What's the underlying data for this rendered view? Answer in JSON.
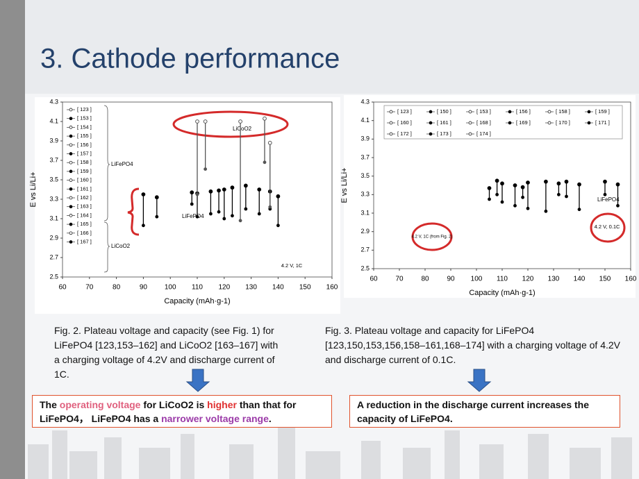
{
  "title": "3. Cathode performance",
  "chart_data": [
    {
      "type": "range",
      "ylabel": "E vs Li/Li+",
      "xlabel": "Capacity (mAh·g-1)",
      "xlim": [
        60,
        160
      ],
      "ylim": [
        2.5,
        4.3
      ],
      "xticks": [
        60,
        70,
        80,
        90,
        100,
        110,
        120,
        130,
        140,
        150,
        160
      ],
      "yticks": [
        2.5,
        2.7,
        2.9,
        3.1,
        3.3,
        3.5,
        3.7,
        3.9,
        4.1,
        4.3
      ],
      "legend": [
        "[ 123 ]",
        "[ 153 ]",
        "[ 154 ]",
        "[ 155 ]",
        "[ 156 ]",
        "[ 157 ]",
        "[ 158 ]",
        "[ 159 ]",
        "[ 160 ]",
        "[ 161 ]",
        "[ 162 ]",
        "[ 163 ]",
        "[ 164 ]",
        "[ 165 ]",
        "[ 166 ]",
        "[ 167 ]"
      ],
      "series": [
        {
          "name": "LiFePO4",
          "color": "#000000",
          "x": [
            90,
            95,
            108,
            110,
            115,
            118,
            120,
            123,
            128,
            133,
            137,
            140
          ],
          "low": [
            3.03,
            3.12,
            3.25,
            3.12,
            3.15,
            3.17,
            3.1,
            3.13,
            3.2,
            3.15,
            3.2,
            3.03
          ],
          "high": [
            3.35,
            3.32,
            3.37,
            3.36,
            3.38,
            3.39,
            3.4,
            3.42,
            3.44,
            3.4,
            3.38,
            3.33
          ]
        },
        {
          "name": "LiCoO2",
          "color": "#555555",
          "x": [
            110,
            113,
            126,
            135,
            137
          ],
          "low": [
            3.35,
            3.61,
            3.08,
            3.68,
            3.22
          ],
          "high": [
            4.1,
            4.1,
            4.1,
            4.13,
            3.88
          ]
        }
      ],
      "annotations": [
        "4.2 V, 1C"
      ]
    },
    {
      "type": "range",
      "ylabel": "E vs Li/Li+",
      "xlabel": "Capacity (mAh·g-1)",
      "xlim": [
        60,
        160
      ],
      "ylim": [
        2.5,
        4.3
      ],
      "xticks": [
        60,
        70,
        80,
        90,
        100,
        110,
        120,
        130,
        140,
        150,
        160
      ],
      "yticks": [
        2.5,
        2.7,
        2.9,
        3.1,
        3.3,
        3.5,
        3.7,
        3.9,
        4.1,
        4.3
      ],
      "legend": [
        "[ 123 ]",
        "[ 150 ]",
        "[ 153 ]",
        "[ 156 ]",
        "[ 158 ]",
        "[ 159 ]",
        "[ 160 ]",
        "[ 161 ]",
        "[ 168 ]",
        "[ 169 ]",
        "[ 170 ]",
        "[ 171 ]",
        "[ 172 ]",
        "[ 173 ]",
        "[ 174 ]"
      ],
      "series": [
        {
          "name": "LiFePO4",
          "color": "#000000",
          "x": [
            105,
            108,
            110,
            115,
            118,
            120,
            127,
            132,
            135,
            140,
            150,
            155
          ],
          "low": [
            3.25,
            3.3,
            3.22,
            3.18,
            3.27,
            3.15,
            3.12,
            3.3,
            3.28,
            3.14,
            3.3,
            3.18
          ],
          "high": [
            3.37,
            3.45,
            3.42,
            3.4,
            3.38,
            3.43,
            3.44,
            3.42,
            3.44,
            3.41,
            3.44,
            3.41
          ]
        }
      ],
      "annotations": [
        "4.2 V, 1C (from Fig. 2)",
        "4.2 V, 0.1C"
      ]
    }
  ],
  "captions": [
    "Fig. 2. Plateau voltage and capacity (see Fig. 1) for LiFePO4 [123,153–162] and LiCoO2 [163–167] with a charging voltage of 4.2V and discharge current of 1C.",
    "Fig. 3. Plateau voltage and capacity for LiFePO4 [123,150,153,156,158–161,168–174] with a charging voltage of 4.2V and discharge current of 0.1C."
  ],
  "conclusions": [
    [
      {
        "text": "The "
      },
      {
        "text": "operating voltage",
        "color": "#e0607e"
      },
      {
        "text": " for LiCoO2 is "
      },
      {
        "text": "higher",
        "color": "#e03030"
      },
      {
        "text": " than that for LiFePO4， LiFePO4 has a "
      },
      {
        "text": "narrower voltage range",
        "color": "#9b3aa8"
      },
      {
        "text": "."
      }
    ],
    [
      {
        "text": "A reduction in the discharge current increases the capacity of LiFePO4."
      }
    ]
  ]
}
